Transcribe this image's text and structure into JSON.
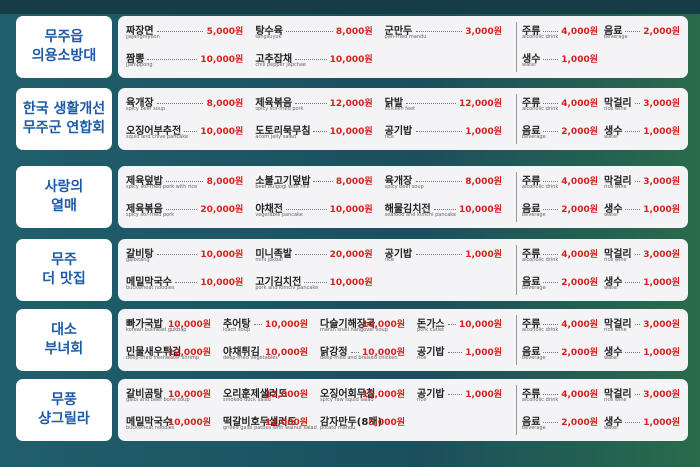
{
  "rows": [
    {
      "vendor": [
        "무주읍",
        "의용소방대"
      ],
      "menu": [
        [
          {
            "name": "짜장면",
            "en": "jjajangmyeon",
            "price": "5,000원"
          },
          {
            "name": "짬뽕",
            "en": "Jjamppong",
            "price": "10,000원"
          }
        ],
        [
          {
            "name": "탕수육",
            "en": "tangsuyuk",
            "price": "8,000원"
          },
          {
            "name": "고추잡채",
            "en": "chili pepper japchae",
            "price": "10,000원"
          }
        ],
        [
          {
            "name": "군만두",
            "en": "pan-fried mandu",
            "price": "3,000원"
          }
        ]
      ],
      "drinks": [
        [
          {
            "name": "주류",
            "en": "alcoholic drink",
            "price": "4,000원"
          },
          {
            "name": "생수",
            "en": "water",
            "price": "1,000원"
          }
        ],
        [
          {
            "name": "음료",
            "en": "beverage",
            "price": "2,000원"
          }
        ]
      ]
    },
    {
      "vendor": [
        "한국 생활개선",
        "무주군 연합회"
      ],
      "menu": [
        [
          {
            "name": "육개장",
            "en": "spicy beef soup",
            "price": "8,000원"
          },
          {
            "name": "오징어부추전",
            "en": "squid and chive pancake",
            "price": "10,000원"
          }
        ],
        [
          {
            "name": "제육볶음",
            "en": "spicy stir-fried pork",
            "price": "12,000원"
          },
          {
            "name": "도토리묵무침",
            "en": "acorn jelly salad",
            "price": "10,000원"
          }
        ],
        [
          {
            "name": "닭발",
            "en": "chicken feet",
            "price": "12,000원"
          },
          {
            "name": "공기밥",
            "en": "rice",
            "price": "1,000원"
          }
        ]
      ],
      "drinks": [
        [
          {
            "name": "주류",
            "en": "alcoholic drink",
            "price": "4,000원"
          },
          {
            "name": "음료",
            "en": "beverage",
            "price": "2,000원"
          }
        ],
        [
          {
            "name": "막걸리",
            "en": "rice wine",
            "price": "3,000원"
          },
          {
            "name": "생수",
            "en": "water",
            "price": "1,000원"
          }
        ]
      ]
    },
    {
      "vendor": [
        "사랑의",
        "열매"
      ],
      "menu": [
        [
          {
            "name": "제육덮밥",
            "en": "spicy stir-fried pork with rice",
            "price": "8,000원"
          },
          {
            "name": "제육볶음",
            "en": "spicy stir-fried pork",
            "price": "20,000원"
          }
        ],
        [
          {
            "name": "소불고기덮밥",
            "en": "beef bulgogi with rice",
            "price": "8,000원"
          },
          {
            "name": "야채전",
            "en": "vegetable pancake",
            "price": "10,000원"
          }
        ],
        [
          {
            "name": "육개장",
            "en": "spicy beef soup",
            "price": "8,000원"
          },
          {
            "name": "해물김치전",
            "en": "seafood and kimchi pancake",
            "price": "10,000원"
          }
        ]
      ],
      "drinks": [
        [
          {
            "name": "주류",
            "en": "alcoholic drink",
            "price": "4,000원"
          },
          {
            "name": "음료",
            "en": "beverage",
            "price": "2,000원"
          }
        ],
        [
          {
            "name": "막걸리",
            "en": "rice wine",
            "price": "3,000원"
          },
          {
            "name": "생수",
            "en": "water",
            "price": "1,000원"
          }
        ]
      ]
    },
    {
      "vendor": [
        "무주",
        "더 맛집"
      ],
      "menu": [
        [
          {
            "name": "갈비탕",
            "en": "galbitang",
            "price": "10,000원"
          },
          {
            "name": "메밀막국수",
            "en": "buckwheat noodles",
            "price": "10,000원"
          }
        ],
        [
          {
            "name": "미니족발",
            "en": "mini jokbal",
            "price": "20,000원"
          },
          {
            "name": "고기김치전",
            "en": "pork and kimchi pancake",
            "price": "10,000원"
          }
        ],
        [
          {
            "name": "공기밥",
            "en": "rice",
            "price": "1,000원"
          }
        ]
      ],
      "drinks": [
        [
          {
            "name": "주류",
            "en": "alcoholic drink",
            "price": "4,000원"
          },
          {
            "name": "음료",
            "en": "beverage",
            "price": "2,000원"
          }
        ],
        [
          {
            "name": "막걸리",
            "en": "rice wine",
            "price": "3,000원"
          },
          {
            "name": "생수",
            "en": "water",
            "price": "1,000원"
          }
        ]
      ]
    },
    {
      "vendor": [
        "대소",
        "부녀회"
      ],
      "menu": [
        [
          {
            "name": "빠가국밥",
            "en": "korean bullhead gukbap",
            "price": "10,000원"
          },
          {
            "name": "민물새우튀김",
            "en": "deep-fried freshwater shrimp",
            "price": "12,000원"
          }
        ],
        [
          {
            "name": "추어탕",
            "en": "loach soup",
            "price": "10,000원"
          },
          {
            "name": "야채튀김",
            "en": "deep-fried vegetables",
            "price": "10,000원"
          }
        ],
        [
          {
            "name": "다슬기해장국",
            "en": "marsh snail hangover soup",
            "price": "10,000원"
          },
          {
            "name": "닭강정",
            "en": "deep-fried and braised chicken",
            "price": "10,000원"
          }
        ],
        [
          {
            "name": "돈가스",
            "en": "pork cutlet",
            "price": "10,000원"
          },
          {
            "name": "공기밥",
            "en": "rice",
            "price": "1,000원"
          }
        ]
      ],
      "drinks": [
        [
          {
            "name": "주류",
            "en": "alcoholic drink",
            "price": "4,000원"
          },
          {
            "name": "음료",
            "en": "beverage",
            "price": "2,000원"
          }
        ],
        [
          {
            "name": "막걸리",
            "en": "rice wine",
            "price": "3,000원"
          },
          {
            "name": "생수",
            "en": "water",
            "price": "1,000원"
          }
        ]
      ]
    },
    {
      "vendor": [
        "무풍",
        "샹그릴라"
      ],
      "menu": [
        [
          {
            "name": "갈비곰탕",
            "en": "galbi and beef bone soup",
            "price": "10,000원"
          },
          {
            "name": "메밀막국수",
            "en": "buckwheat noodles",
            "price": "10,000원"
          }
        ],
        [
          {
            "name": "오리훈제샐러드",
            "en": "smoked duck salad",
            "price": "12,000원"
          },
          {
            "name": "떡갈비호두샐러드",
            "en": "grilled galbi patties with walnut salad",
            "price": "12,000원"
          }
        ],
        [
          {
            "name": "오징어회무침",
            "en": "spicy raw squid salad",
            "price": "15,000원"
          },
          {
            "name": "감자만두(8개)",
            "en": "potato mandu",
            "price": "5,000원"
          }
        ],
        [
          {
            "name": "공기밥",
            "en": "rice",
            "price": "1,000원"
          }
        ]
      ],
      "drinks": [
        [
          {
            "name": "주류",
            "en": "alcoholic drink",
            "price": "4,000원"
          },
          {
            "name": "음료",
            "en": "beverage",
            "price": "2,000원"
          }
        ],
        [
          {
            "name": "막걸리",
            "en": "rice wine",
            "price": "3,000원"
          },
          {
            "name": "생수",
            "en": "water",
            "price": "1,000원"
          }
        ]
      ]
    }
  ]
}
